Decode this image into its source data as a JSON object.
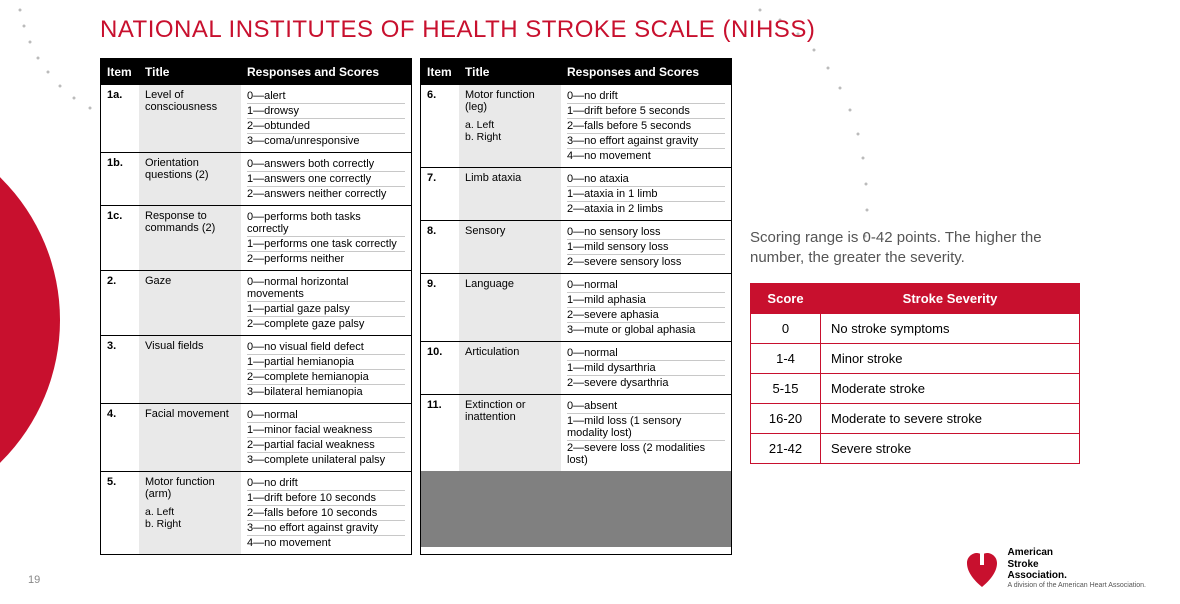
{
  "title": "NATIONAL INSTITUTES OF HEALTH STROKE SCALE (NIHSS)",
  "page_number": "19",
  "colors": {
    "brand": "#c8102e",
    "header_bg": "#000000",
    "header_fg": "#ffffff",
    "shade": "#e9e9e9",
    "filler": "#808080"
  },
  "headers": {
    "item": "Item",
    "title": "Title",
    "responses": "Responses and Scores"
  },
  "left": [
    {
      "item": "1a.",
      "title": "Level of consciousness",
      "sub": "",
      "responses": [
        "0—alert",
        "1—drowsy",
        "2—obtunded",
        "3—coma/unresponsive"
      ]
    },
    {
      "item": "1b.",
      "title": "Orientation questions (2)",
      "sub": "",
      "responses": [
        "0—answers both correctly",
        "1—answers one correctly",
        "2—answers neither correctly"
      ]
    },
    {
      "item": "1c.",
      "title": "Response to commands (2)",
      "sub": "",
      "responses": [
        "0—performs both tasks correctly",
        "1—performs one task correctly",
        "2—performs neither"
      ]
    },
    {
      "item": "2.",
      "title": "Gaze",
      "sub": "",
      "responses": [
        "0—normal horizontal movements",
        "1—partial gaze palsy",
        "2—complete gaze palsy"
      ]
    },
    {
      "item": "3.",
      "title": "Visual fields",
      "sub": "",
      "responses": [
        "0—no visual field defect",
        "1—partial hemianopia",
        "2—complete hemianopia",
        "3—bilateral hemianopia"
      ]
    },
    {
      "item": "4.",
      "title": "Facial movement",
      "sub": "",
      "responses": [
        "0—normal",
        "1—minor facial weakness",
        "2—partial facial weakness",
        "3—complete unilateral palsy"
      ]
    },
    {
      "item": "5.",
      "title": "Motor function (arm)",
      "sub": "a. Left\nb. Right",
      "responses": [
        "0—no drift",
        "1—drift before 10 seconds",
        "2—falls before 10 seconds",
        "3—no effort against gravity",
        "4—no movement"
      ]
    }
  ],
  "right": [
    {
      "item": "6.",
      "title": "Motor function (leg)",
      "sub": "a. Left\nb. Right",
      "responses": [
        "0—no drift",
        "1—drift before 5 seconds",
        "2—falls before 5 seconds",
        "3—no effort against gravity",
        "4—no movement"
      ]
    },
    {
      "item": "7.",
      "title": "Limb ataxia",
      "sub": "",
      "responses": [
        "0—no ataxia",
        "1—ataxia in 1 limb",
        "2—ataxia in 2 limbs"
      ]
    },
    {
      "item": "8.",
      "title": "Sensory",
      "sub": "",
      "responses": [
        "0—no sensory loss",
        "1—mild sensory loss",
        "2—severe sensory loss"
      ]
    },
    {
      "item": "9.",
      "title": "Language",
      "sub": "",
      "responses": [
        "0—normal",
        "1—mild aphasia",
        "2—severe aphasia",
        "3—mute or global aphasia"
      ]
    },
    {
      "item": "10.",
      "title": "Articulation",
      "sub": "",
      "responses": [
        "0—normal",
        "1—mild dysarthria",
        "2—severe dysarthria"
      ]
    },
    {
      "item": "11.",
      "title": "Extinction or inattention",
      "sub": "",
      "responses": [
        "0—absent",
        "1—mild loss (1 sensory modality lost)",
        "2—severe loss (2 modalities lost)"
      ]
    }
  ],
  "scoring_note": "Scoring range is 0-42 points. The higher the number, the greater the severity.",
  "severity": {
    "headers": {
      "score": "Score",
      "severity": "Stroke Severity"
    },
    "rows": [
      {
        "score": "0",
        "label": "No stroke symptoms"
      },
      {
        "score": "1-4",
        "label": "Minor stroke"
      },
      {
        "score": "5-15",
        "label": "Moderate stroke"
      },
      {
        "score": "16-20",
        "label": "Moderate to severe stroke"
      },
      {
        "score": "21-42",
        "label": "Severe stroke"
      }
    ]
  },
  "logo": {
    "line1": "American",
    "line2": "Stroke",
    "line3": "Association.",
    "sub": "A division of the American Heart Association."
  }
}
